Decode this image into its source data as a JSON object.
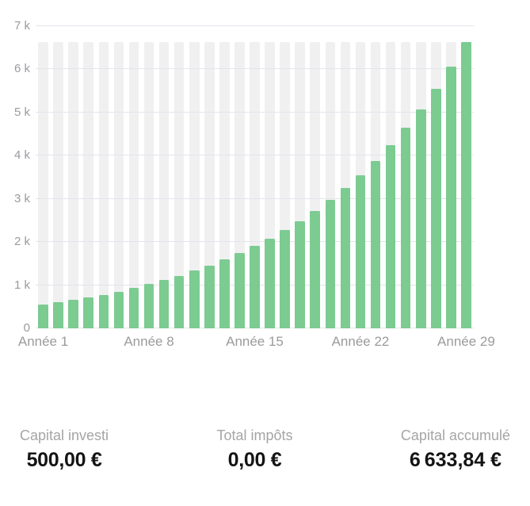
{
  "chart_data": {
    "type": "bar",
    "title": "",
    "xlabel": "",
    "ylabel": "",
    "ylim": [
      0,
      7000
    ],
    "currency": "EUR",
    "grid": true,
    "legend": false,
    "categories": [
      "Année 1",
      "Année 2",
      "Année 3",
      "Année 4",
      "Année 5",
      "Année 6",
      "Année 7",
      "Année 8",
      "Année 9",
      "Année 10",
      "Année 11",
      "Année 12",
      "Année 13",
      "Année 14",
      "Année 15",
      "Année 16",
      "Année 17",
      "Année 18",
      "Année 19",
      "Année 20",
      "Année 21",
      "Année 22",
      "Année 23",
      "Année 24",
      "Année 25",
      "Année 26",
      "Année 27",
      "Année 28",
      "Année 29"
    ],
    "values": [
      546.62,
      597.59,
      653.3,
      714.22,
      780.82,
      853.62,
      933.22,
      1020.24,
      1115.38,
      1219.38,
      1333.07,
      1457.37,
      1593.26,
      1741.81,
      1904.22,
      2081.78,
      2275.89,
      2488.1,
      2720.11,
      2973.73,
      3251.02,
      3554.16,
      3885.56,
      4247.85,
      4643.92,
      5076.93,
      5550.32,
      6067.86,
      6633.84
    ],
    "y_ticks": [
      0,
      1000,
      2000,
      3000,
      4000,
      5000,
      6000,
      7000
    ],
    "y_tick_labels": [
      "0",
      "1 k",
      "2 k",
      "3 k",
      "4 k",
      "5 k",
      "6 k",
      "7 k"
    ],
    "x_ticks": [
      {
        "index": 1,
        "label": "Année 1"
      },
      {
        "index": 8,
        "label": "Année 8"
      },
      {
        "index": 15,
        "label": "Année 15"
      },
      {
        "index": 22,
        "label": "Année 22"
      },
      {
        "index": 29,
        "label": "Année 29"
      }
    ],
    "bar_color": "#7ccb91",
    "column_track_color": "#f0f0f1",
    "column_track_value": 6633.84,
    "gridline_color": "#e4e4ec",
    "y_label_color": "#9a9aa0",
    "x_label_color": "#9b9b9b"
  },
  "stats": [
    {
      "label": "Capital investi",
      "value": "500,00 €"
    },
    {
      "label": "Total impôts",
      "value": "0,00 €"
    },
    {
      "label": "Capital accumulé",
      "value": "6 633,84 €"
    }
  ]
}
